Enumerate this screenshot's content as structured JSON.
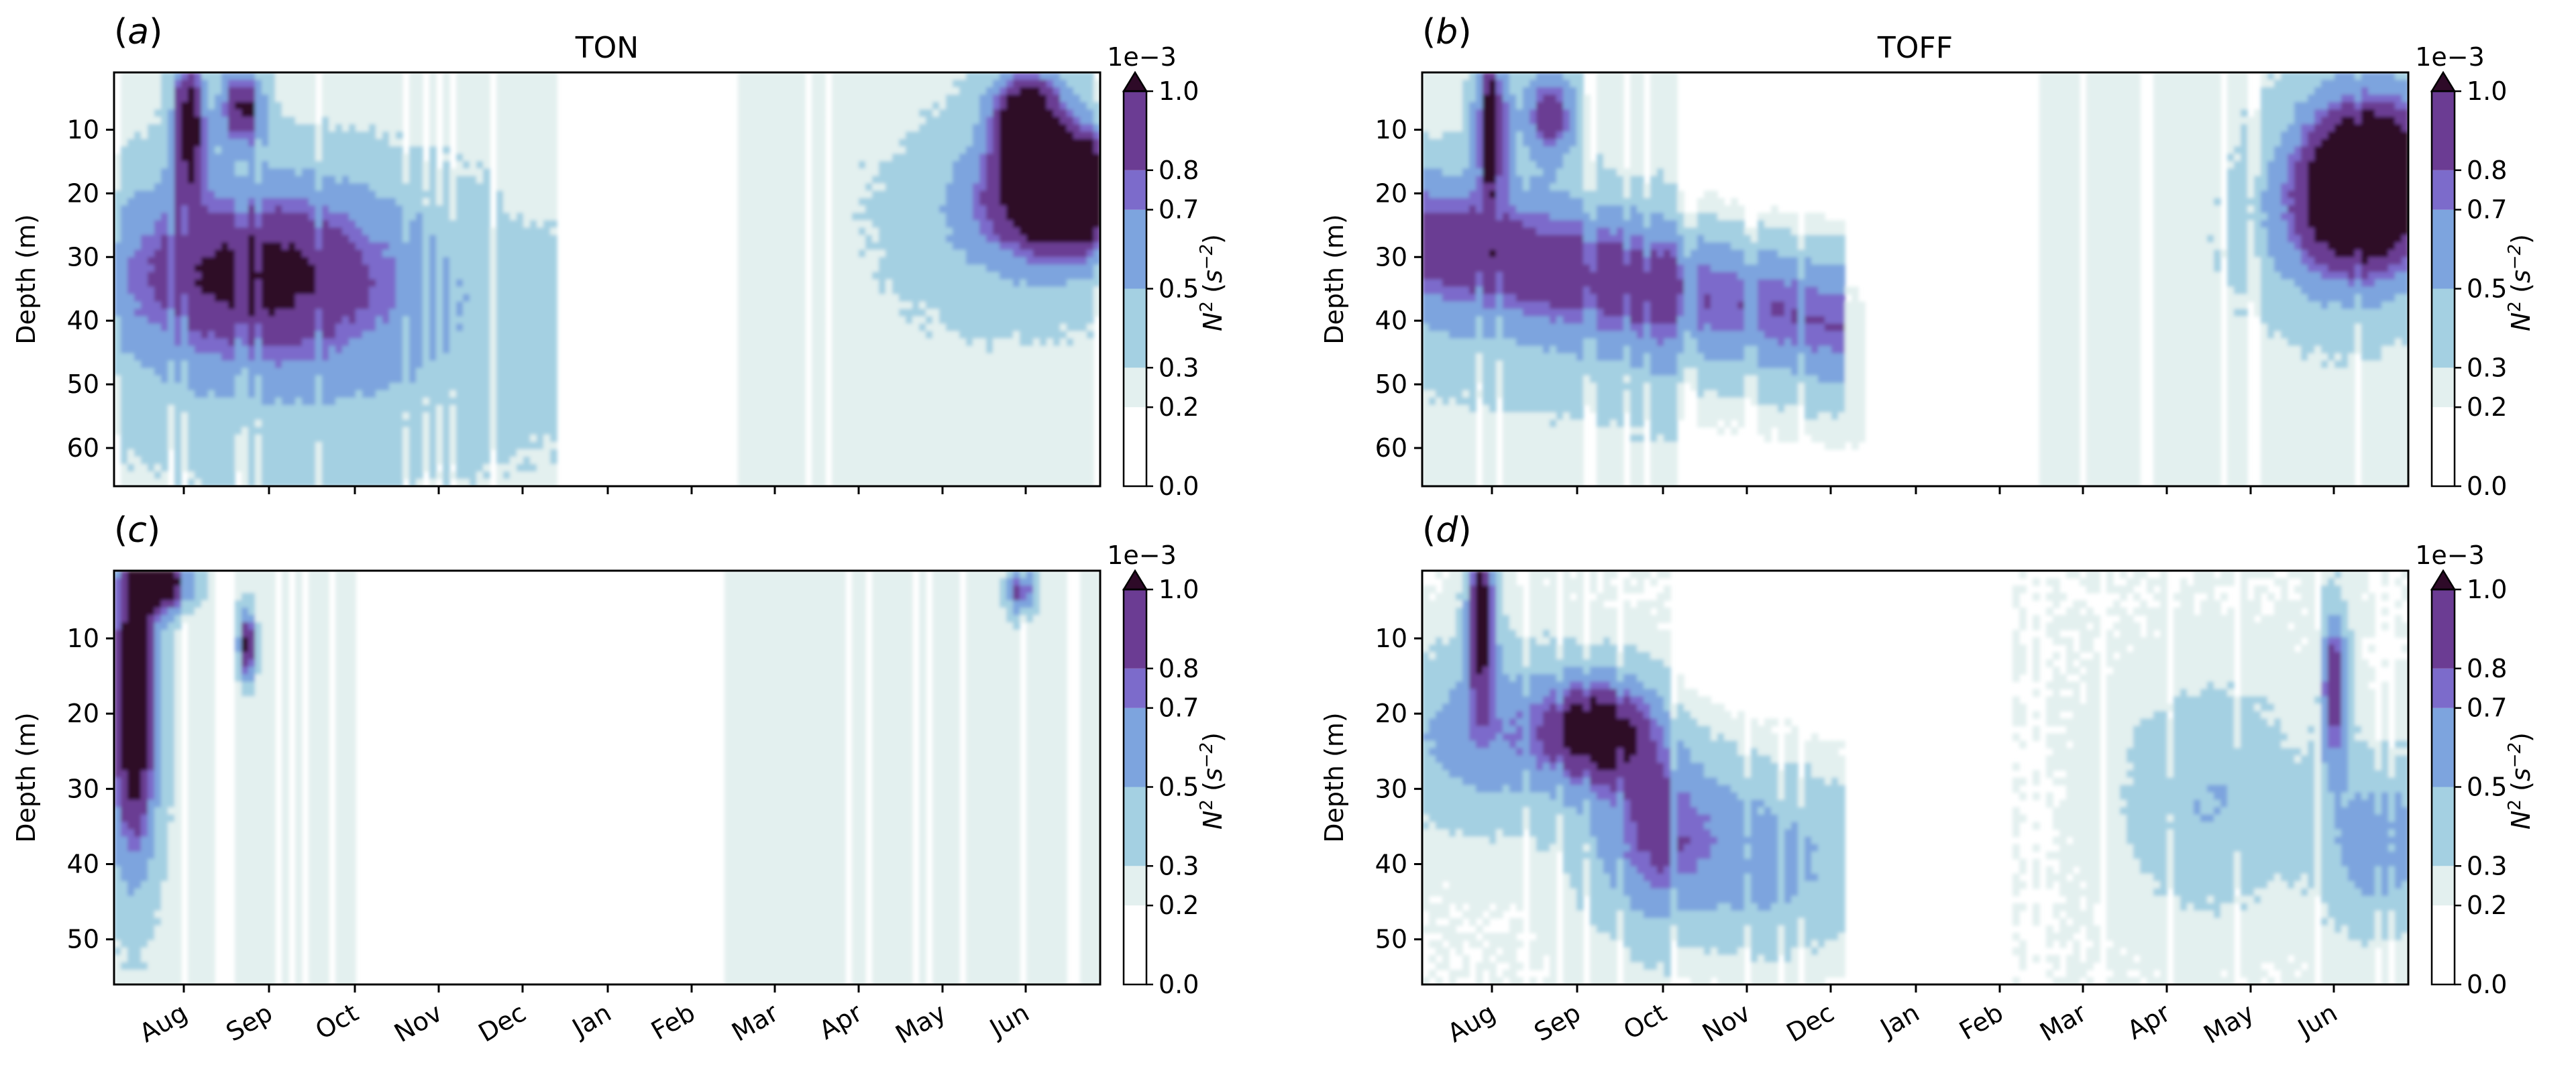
{
  "colorbar": {
    "levels": [
      0.0,
      0.2,
      0.3,
      0.5,
      0.7,
      0.8,
      1.0
    ],
    "tick_labels": [
      "0.0",
      "0.2",
      "0.3",
      "0.5",
      "0.7",
      "0.8",
      "1.0"
    ],
    "colors": [
      "#ffffff",
      "#e3f0ef",
      "#a4d0e2",
      "#7da4de",
      "#7c6bcb",
      "#6b3c93",
      "#4a163e"
    ],
    "extend_color": "#2e0a28",
    "exponent_label": "1e−3",
    "label_main": "N",
    "label_sup": "2",
    "label_unit": " (s",
    "label_unit_sup": "−2",
    "label_close": ")",
    "extend": "max"
  },
  "months": [
    "Aug",
    "Sep",
    "Oct",
    "Nov",
    "Dec",
    "Jan",
    "Feb",
    "Mar",
    "Apr",
    "May",
    "Jun"
  ],
  "chart_data": [
    {
      "type": "heatmap",
      "panel": "(a)",
      "title": "TON",
      "ylabel": "Depth (m)",
      "yticks": [
        "10",
        "20",
        "30",
        "40",
        "50",
        "60"
      ],
      "ylim": [
        66,
        1
      ],
      "x_time_range": [
        "Jul",
        "Jun"
      ],
      "features": [
        {
          "month": "Aug",
          "depth_range": [
            20,
            45
          ],
          "level": 0.5
        },
        {
          "month": "Sep",
          "depth_range": [
            25,
            35
          ],
          "level": 0.7
        },
        {
          "month": "Jun",
          "depth_range": [
            15,
            28
          ],
          "level": 1.0
        }
      ]
    },
    {
      "type": "heatmap",
      "panel": "(b)",
      "title": "TOFF",
      "ylabel": "Depth (m)",
      "yticks": [
        "10",
        "20",
        "30",
        "40",
        "50",
        "60"
      ],
      "ylim": [
        66,
        1
      ],
      "x_time_range": [
        "Jul",
        "Jun"
      ],
      "features": [
        {
          "month": "Sep",
          "depth_range": [
            28,
            45
          ],
          "level": 0.5
        },
        {
          "month": "Oct",
          "depth_range": [
            35,
            45
          ],
          "level": 0.7
        },
        {
          "month": "Jun",
          "depth_range": [
            15,
            30
          ],
          "level": 1.0
        }
      ]
    },
    {
      "type": "heatmap",
      "panel": "(c)",
      "title": "",
      "ylabel": "Depth (m)",
      "yticks": [
        "10",
        "20",
        "30",
        "40",
        "50"
      ],
      "ylim": [
        56,
        1
      ],
      "x_time_range": [
        "Jul",
        "Jun"
      ],
      "features": [
        {
          "month": "Aug",
          "depth_range": [
            1,
            10
          ],
          "level": 1.0
        },
        {
          "month": "Sep",
          "depth_range": [
            4,
            10
          ],
          "level": 0.8
        }
      ]
    },
    {
      "type": "heatmap",
      "panel": "(d)",
      "title": "",
      "ylabel": "Depth (m)",
      "yticks": [
        "10",
        "20",
        "30",
        "40",
        "50"
      ],
      "ylim": [
        56,
        1
      ],
      "x_time_range": [
        "Jul",
        "Jun"
      ],
      "features": [
        {
          "month": "Sep",
          "depth_range": [
            18,
            26
          ],
          "level": 1.0
        },
        {
          "month": "Oct",
          "depth_range": [
            30,
            42
          ],
          "level": 0.7
        },
        {
          "month": "Nov",
          "depth_range": [
            35,
            48
          ],
          "level": 0.5
        },
        {
          "month": "Jun",
          "depth_range": [
            33,
            42
          ],
          "level": 0.5
        }
      ]
    }
  ]
}
